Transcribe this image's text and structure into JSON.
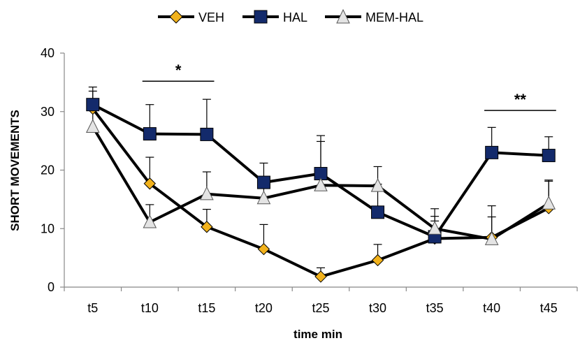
{
  "chart_data": {
    "type": "line",
    "title": "",
    "xlabel": "time min",
    "ylabel": "SHORT MOVEMENTS",
    "ylim": [
      0,
      40
    ],
    "yticks": [
      0,
      10,
      20,
      30,
      40
    ],
    "categories": [
      "t5",
      "t10",
      "t15",
      "t20",
      "t25",
      "t30",
      "t35",
      "t40",
      "t45"
    ],
    "grid": false,
    "legend_position": "top",
    "series": [
      {
        "name": "VEH",
        "marker": "diamond",
        "marker_color": "#f2b21c",
        "line_color": "#000000",
        "values": [
          30.5,
          17.7,
          10.3,
          6.5,
          1.8,
          4.6,
          8.3,
          8.5,
          13.5
        ],
        "error": [
          3.0,
          4.5,
          3.0,
          4.2,
          1.5,
          2.7,
          3.0,
          3.5,
          4.6
        ]
      },
      {
        "name": "HAL",
        "marker": "square",
        "marker_color": "#132a6b",
        "line_color": "#000000",
        "values": [
          31.2,
          26.2,
          26.1,
          17.9,
          19.4,
          12.8,
          8.6,
          23.0,
          22.5
        ],
        "error": [
          3.0,
          5.0,
          6.0,
          3.3,
          6.5,
          4.8,
          3.5,
          4.3,
          3.2
        ]
      },
      {
        "name": "MEM-HAL",
        "marker": "triangle",
        "marker_color": "#e4e4e4",
        "line_color": "#000000",
        "values": [
          27.4,
          11.1,
          15.9,
          15.2,
          17.4,
          17.3,
          10.0,
          8.2,
          14.3
        ],
        "error": [
          4.0,
          3.0,
          3.8,
          3.0,
          7.5,
          3.3,
          3.4,
          5.7,
          4.0
        ]
      }
    ],
    "annotations": [
      {
        "text": "*",
        "from": "t10",
        "to": "t15",
        "y": 35.2
      },
      {
        "text": "**",
        "from": "t40",
        "to": "t45",
        "y": 30.2
      }
    ]
  }
}
